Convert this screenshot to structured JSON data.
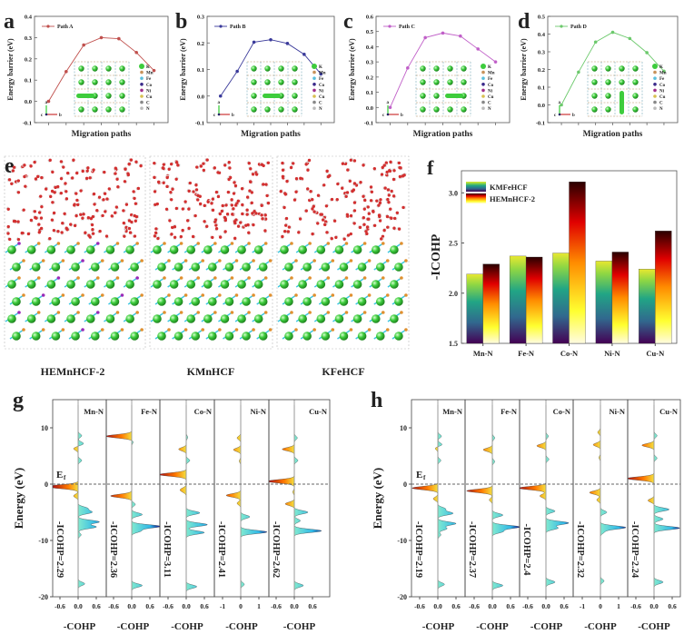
{
  "panel_letters": {
    "a": "a",
    "b": "b",
    "c": "c",
    "d": "d",
    "e": "e",
    "f": "f",
    "g": "g",
    "h": "h"
  },
  "colors": {
    "pathA": "#c0504d",
    "pathB": "#3a3a9a",
    "pathC": "#c05fc8",
    "pathD": "#6cc96c",
    "cyan": "#39c7d6",
    "green": "#3dcc3d"
  },
  "chart_data": [
    {
      "id": "a",
      "type": "line",
      "series": [
        {
          "name": "Path A",
          "values": [
            0.0,
            0.14,
            0.265,
            0.3,
            0.295,
            0.23,
            0.145
          ]
        }
      ],
      "ylabel": "Energy barrier (eV)",
      "xlabel": "Migration paths",
      "ylim": [
        -0.1,
        0.4
      ],
      "yticks": [
        "-0.1",
        "0.0",
        "0.1",
        "0.2",
        "0.3",
        "0.4"
      ],
      "legend": "top-left"
    },
    {
      "id": "b",
      "type": "line",
      "series": [
        {
          "name": "Path B",
          "values": [
            0.0,
            0.093,
            0.203,
            0.212,
            0.198,
            0.157,
            0.083
          ]
        }
      ],
      "ylabel": "Energy barrier (eV)",
      "xlabel": "Migration paths",
      "ylim": [
        -0.1,
        0.3
      ],
      "yticks": [
        "-0.1",
        "0.0",
        "0.1",
        "0.2",
        "0.3"
      ],
      "legend": "top-left"
    },
    {
      "id": "c",
      "type": "line",
      "series": [
        {
          "name": "Path C",
          "values": [
            0.0,
            0.26,
            0.46,
            0.49,
            0.47,
            0.385,
            0.3
          ]
        }
      ],
      "ylabel": "Energy barrier (eV)",
      "xlabel": "Migration paths",
      "ylim": [
        -0.1,
        0.6
      ],
      "yticks": [
        "-0.1",
        "0.0",
        "0.1",
        "0.2",
        "0.3",
        "0.4",
        "0.5",
        "0.6"
      ],
      "legend": "top-left"
    },
    {
      "id": "d",
      "type": "line",
      "series": [
        {
          "name": "Path D",
          "values": [
            0.0,
            0.185,
            0.355,
            0.41,
            0.375,
            0.295,
            0.19
          ]
        }
      ],
      "ylabel": "Energy barrier (eV)",
      "xlabel": "Migration paths",
      "ylim": [
        -0.1,
        0.5
      ],
      "yticks": [
        "-0.1",
        "0.0",
        "0.1",
        "0.2",
        "0.3",
        "0.4",
        "0.5"
      ],
      "legend": "top-left"
    },
    {
      "id": "f",
      "type": "bar",
      "categories": [
        "Mn-N",
        "Fe-N",
        "Co-N",
        "Ni-N",
        "Cu-N"
      ],
      "series": [
        {
          "name": "KMFeHCF",
          "values": [
            2.19,
            2.37,
            2.4,
            2.32,
            2.24
          ]
        },
        {
          "name": "HEMnHCF-2",
          "values": [
            2.29,
            2.36,
            3.11,
            2.41,
            2.62
          ]
        }
      ],
      "ylabel": "-ICOHP",
      "ylim": [
        1.5,
        3.22
      ],
      "yticks": [
        "1.5",
        "2.0",
        "2.5",
        "3.0"
      ],
      "legend": "top-left"
    },
    {
      "id": "g",
      "type": "area",
      "ylabel": "Energy (eV)",
      "xlabel": "-COHP",
      "ylim": [
        -20,
        15
      ],
      "yticks": [
        "10",
        "0",
        "-10",
        "-20"
      ],
      "fermi_label": "E",
      "fermi_sub": "f",
      "panels": [
        {
          "bond": "Mn-N",
          "icohp": "-ICOHP=2.29",
          "xticks": [
            "-0.6",
            "0.0",
            "0.6"
          ],
          "xscale": 0.6,
          "peaks": [
            [
              8.6,
              0.12
            ],
            [
              7.2,
              0.18
            ],
            [
              6.3,
              -0.15
            ],
            [
              4.2,
              0.12
            ],
            [
              -0.4,
              -0.85
            ],
            [
              -0.6,
              -0.3
            ],
            [
              -2.1,
              -0.15
            ],
            [
              -4.3,
              0.3
            ],
            [
              -5.0,
              0.45
            ],
            [
              -6.7,
              0.7
            ],
            [
              -7.6,
              0.6
            ],
            [
              -9,
              0.1
            ],
            [
              -17.7,
              0.22
            ]
          ]
        },
        {
          "bond": "Fe-N",
          "icohp": "-ICOHP=2.36",
          "xticks": [
            "-0.6",
            "0.0",
            "0.6"
          ],
          "xscale": 0.6,
          "peaks": [
            [
              8.5,
              -0.85
            ],
            [
              7.5,
              0.05
            ],
            [
              -2.1,
              -0.7
            ],
            [
              -3.6,
              0.12
            ],
            [
              -5.4,
              0.35
            ],
            [
              -7.5,
              0.95
            ],
            [
              -8.3,
              0.3
            ],
            [
              -18,
              0.35
            ]
          ]
        },
        {
          "bond": "Co-N",
          "icohp": "-ICOHP=3.11",
          "xticks": [
            "-0.6",
            "0.0",
            "0.6"
          ],
          "xscale": 0.6,
          "peaks": [
            [
              8.3,
              0.05
            ],
            [
              6.2,
              -0.25
            ],
            [
              4.2,
              0.12
            ],
            [
              1.7,
              -0.9
            ],
            [
              -0.9,
              -0.15
            ],
            [
              -1.3,
              -0.1
            ],
            [
              -5.1,
              0.45
            ],
            [
              -7.2,
              0.7
            ],
            [
              -8.6,
              0.6
            ],
            [
              -18.2,
              0.35
            ]
          ]
        },
        {
          "bond": "Ni-N",
          "icohp": "-ICOHP=2.41",
          "xticks": [
            "-1",
            "0",
            "1"
          ],
          "xscale": 1.0,
          "peaks": [
            [
              8.2,
              -0.2
            ],
            [
              6.1,
              -0.4
            ],
            [
              4.1,
              -0.08
            ],
            [
              -2.0,
              -0.8
            ],
            [
              -3.4,
              -0.2
            ],
            [
              -5.8,
              0.5
            ],
            [
              -8.5,
              1.45
            ],
            [
              -17.8,
              0.2
            ]
          ]
        },
        {
          "bond": "Cu-N",
          "icohp": "-ICOHP=2.62",
          "xticks": [
            "-0.6",
            "0.0",
            "0.6"
          ],
          "xscale": 0.6,
          "peaks": [
            [
              8.2,
              0.1
            ],
            [
              6.2,
              -0.4
            ],
            [
              4.2,
              0.12
            ],
            [
              0.5,
              -0.9
            ],
            [
              -1.4,
              -0.05
            ],
            [
              -3.5,
              -0.3
            ],
            [
              -5.0,
              0.45
            ],
            [
              -6.5,
              0.2
            ],
            [
              -8.3,
              0.9
            ],
            [
              -18,
              0.3
            ]
          ]
        }
      ]
    },
    {
      "id": "h",
      "type": "area",
      "ylabel": "Energy (eV)",
      "xlabel": "-COHP",
      "ylim": [
        -20,
        15
      ],
      "yticks": [
        "10",
        "0",
        "-10",
        "-20"
      ],
      "fermi_label": "E",
      "fermi_sub": "f",
      "panels": [
        {
          "bond": "Mn-N",
          "icohp": "-ICOHP=2.19",
          "xticks": [
            "-0.6",
            "0.0",
            "0.6"
          ],
          "xscale": 0.6,
          "peaks": [
            [
              8.5,
              0.12
            ],
            [
              7.0,
              0.15
            ],
            [
              6.4,
              -0.1
            ],
            [
              4.2,
              0.1
            ],
            [
              -0.7,
              -0.85
            ],
            [
              -2.6,
              -0.15
            ],
            [
              -4.4,
              0.25
            ],
            [
              -5.2,
              0.5
            ],
            [
              -7.0,
              0.6
            ],
            [
              -7.9,
              0.3
            ],
            [
              -9,
              0.1
            ],
            [
              -17.8,
              0.22
            ]
          ]
        },
        {
          "bond": "Fe-N",
          "icohp": "-ICOHP=2.37",
          "xticks": [
            "-0.6",
            "0.0",
            "0.6"
          ],
          "xscale": 0.6,
          "peaks": [
            [
              8.2,
              0.08
            ],
            [
              6.1,
              -0.3
            ],
            [
              4,
              0.08
            ],
            [
              -1.2,
              -0.85
            ],
            [
              -2.8,
              -0.1
            ],
            [
              -5.5,
              0.35
            ],
            [
              -7.6,
              0.9
            ],
            [
              -8.4,
              0.35
            ],
            [
              -18,
              0.35
            ]
          ]
        },
        {
          "bond": "Co-N",
          "icohp": "-ICOHP=2.4",
          "xticks": [
            "-0.6",
            "0.0",
            "0.6"
          ],
          "xscale": 0.6,
          "peaks": [
            [
              8.5,
              0.08
            ],
            [
              6.8,
              -0.3
            ],
            [
              4.4,
              0.1
            ],
            [
              -0.7,
              -0.9
            ],
            [
              -2.1,
              -0.2
            ],
            [
              -4.8,
              0.3
            ],
            [
              -6.9,
              0.75
            ],
            [
              -7.8,
              0.4
            ],
            [
              -17.4,
              0.3
            ]
          ]
        },
        {
          "bond": "Ni-N",
          "icohp": "-ICOHP=2.32",
          "xticks": [
            "-1",
            "0",
            "1"
          ],
          "xscale": 1.0,
          "peaks": [
            [
              9.2,
              -0.15
            ],
            [
              7.0,
              -0.4
            ],
            [
              4.7,
              -0.08
            ],
            [
              -1.5,
              -0.6
            ],
            [
              -2.8,
              -0.2
            ],
            [
              -5.0,
              0.35
            ],
            [
              -7.7,
              1.4
            ],
            [
              -8.5,
              0.2
            ],
            [
              -17.2,
              0.2
            ]
          ]
        },
        {
          "bond": "Cu-N",
          "icohp": "-ICOHP=2.24",
          "xticks": [
            "-0.6",
            "0.0",
            "0.6"
          ],
          "xscale": 0.6,
          "peaks": [
            [
              8.6,
              0.1
            ],
            [
              6.9,
              -0.4
            ],
            [
              4.6,
              0.1
            ],
            [
              1.0,
              -0.9
            ],
            [
              -2.9,
              -0.2
            ],
            [
              -4.5,
              0.5
            ],
            [
              -6.2,
              0.3
            ],
            [
              -7.8,
              0.85
            ],
            [
              -17.4,
              0.3
            ]
          ]
        }
      ]
    }
  ],
  "inset_legend": [
    "K",
    "Mn",
    "Fe",
    "Co",
    "Ni",
    "Cu",
    "C",
    "N"
  ],
  "inset_axes": {
    "a": "a",
    "b": "b",
    "c": "c"
  },
  "panel_e": {
    "structures": [
      "HEMnHCF-2",
      "KMnHCF",
      "KFeHCF"
    ]
  }
}
